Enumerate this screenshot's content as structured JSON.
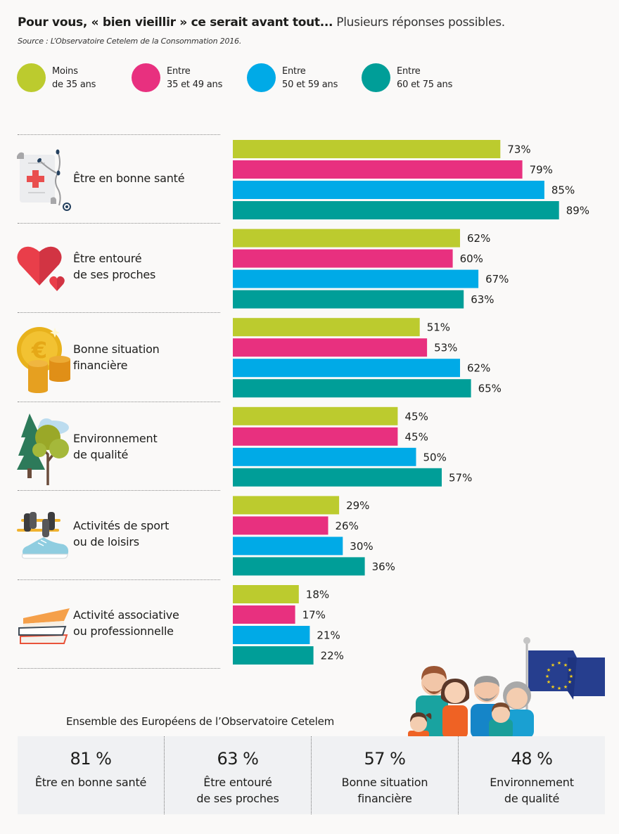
{
  "header": {
    "title_bold": "Pour vous, « bien vieillir » ce serait avant tout...",
    "title_light": " Plusieurs réponses possibles.",
    "source": "Source : L’Observatoire Cetelem de la Consommation 2016."
  },
  "legend": [
    {
      "label": "Moins\nde 35 ans",
      "color": "#bccb2e",
      "icon": "circle-swatch"
    },
    {
      "label": "Entre\n35 et 49 ans",
      "color": "#e8307f",
      "icon": "circle-swatch"
    },
    {
      "label": "Entre\n50 et 59 ans",
      "color": "#00aae7",
      "icon": "circle-swatch"
    },
    {
      "label": "Entre\n60 et 75 ans",
      "color": "#009e98",
      "icon": "circle-swatch"
    }
  ],
  "categories": [
    {
      "label": "Être en bonne santé",
      "icon": "medical-record-stethoscope-icon"
    },
    {
      "label": "Être entouré\nde ses proches",
      "icon": "hearts-icon"
    },
    {
      "label": "Bonne situation\nfinancière",
      "icon": "euro-coins-icon"
    },
    {
      "label": "Environnement\nde qualité",
      "icon": "trees-icon"
    },
    {
      "label": "Activités de sport\nou de loisirs",
      "icon": "dumbbell-sneaker-icon"
    },
    {
      "label": "Activité associative\nou professionnelle",
      "icon": "books-icon"
    }
  ],
  "chart_data": {
    "type": "bar",
    "orientation": "horizontal",
    "title": "Pour vous, « bien vieillir » ce serait avant tout... Plusieurs réponses possibles.",
    "subtitle": "Source : L’Observatoire Cetelem de la Consommation 2016.",
    "categories": [
      "Être en bonne santé",
      "Être entouré de ses proches",
      "Bonne situation financière",
      "Environnement de qualité",
      "Activités de sport ou de loisirs",
      "Activité associative ou professionnelle"
    ],
    "series": [
      {
        "name": "Moins de 35 ans",
        "color": "#bccb2e",
        "values": [
          73,
          62,
          51,
          45,
          29,
          18
        ]
      },
      {
        "name": "Entre 35 et 49 ans",
        "color": "#e8307f",
        "values": [
          79,
          60,
          53,
          45,
          26,
          17
        ]
      },
      {
        "name": "Entre 50 et 59 ans",
        "color": "#00aae7",
        "values": [
          85,
          67,
          62,
          50,
          30,
          21
        ]
      },
      {
        "name": "Entre 60 et 75 ans",
        "color": "#009e98",
        "values": [
          89,
          63,
          65,
          57,
          36,
          22
        ]
      }
    ],
    "unit": "%",
    "xlim": [
      0,
      100
    ],
    "grid": false,
    "legend_position": "top",
    "xlabel": "",
    "ylabel": ""
  },
  "summary": {
    "title": "Ensemble des Européens de l’Observatoire Cetelem",
    "items": [
      {
        "value": "81 %",
        "label": "Être en bonne santé"
      },
      {
        "value": "63 %",
        "label": "Être entouré\nde ses proches"
      },
      {
        "value": "57 %",
        "label": "Bonne situation\nfinancière"
      },
      {
        "value": "48 %",
        "label": "Environnement\nde qualité"
      }
    ],
    "illustration": "family-with-eu-flag-icon"
  }
}
